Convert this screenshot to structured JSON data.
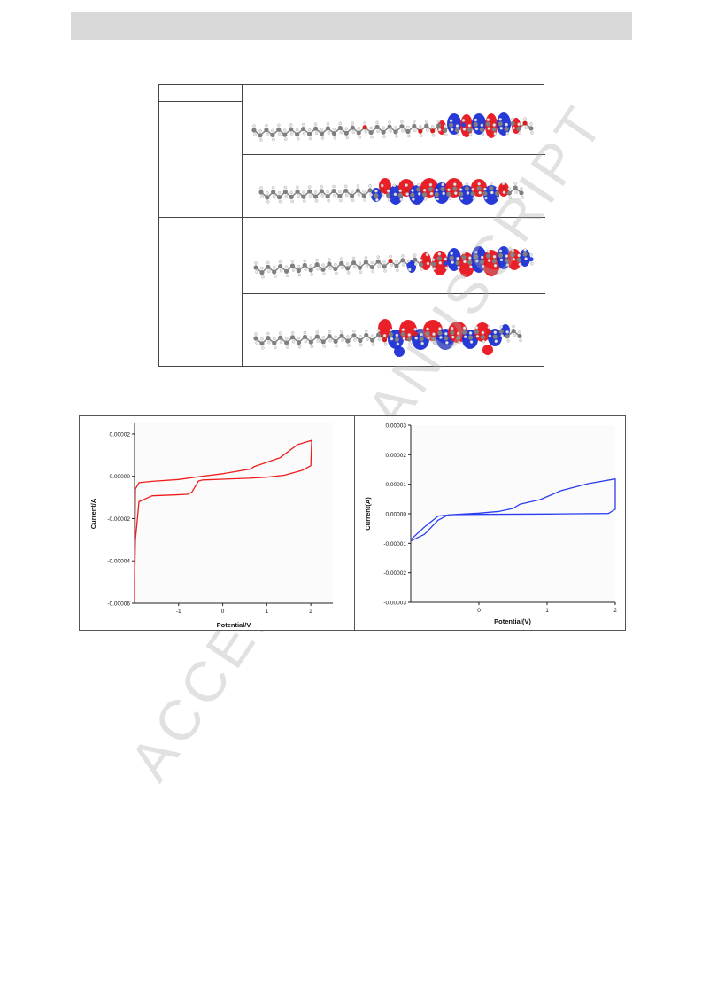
{
  "watermark": "ACCEPTED MANUSCRIPT",
  "colors": {
    "header_bar": "#d9d9d9",
    "orbital_positive": "#e8141c",
    "orbital_negative": "#1b2fd6",
    "atom_carbon": "#7f7f7f",
    "atom_hydrogen": "#e6e6e6",
    "atom_oxygen": "#d62020",
    "atom_nitrogen": "#2d3fd8",
    "cv_left_line": "#ee1c1c",
    "cv_right_line": "#2b3df0"
  },
  "orbital_table": {
    "row_labels": [
      "",
      "",
      ""
    ],
    "images": [
      "molecular-orbital-1",
      "molecular-orbital-2",
      "molecular-orbital-3",
      "molecular-orbital-4"
    ]
  },
  "chart_data": [
    {
      "type": "line",
      "title": "",
      "xlabel": "Potential/V",
      "ylabel": "Current/A",
      "xlim": [
        -2.0,
        2.5
      ],
      "ylim": [
        -6e-05,
        2.5e-05
      ],
      "x_ticks": [
        -1,
        0,
        1,
        2
      ],
      "x_tick_labels": [
        "-1",
        "0",
        "1",
        "2"
      ],
      "y_ticks": [
        2e-05,
        0.0,
        -2e-05,
        -4e-05,
        -6e-05
      ],
      "y_tick_labels": [
        "0.00002",
        "0.00000",
        "-0.00002",
        "-0.00004",
        "-0.00006"
      ],
      "grid": false,
      "series": [
        {
          "color": "#ee1c1c",
          "x": [
            -2.0,
            -2.0,
            -1.98,
            -1.9,
            -1.6,
            -1.1,
            -0.8,
            -0.7,
            -0.6,
            -0.55,
            -0.45,
            0.0,
            0.6,
            1.0,
            1.4,
            1.8,
            2.0,
            2.02,
            1.7,
            1.3,
            0.7,
            0.65,
            0.0,
            -0.5,
            -1.0,
            -1.6,
            -1.9,
            -1.98,
            -2.0
          ],
          "y": [
            -5.9e-05,
            -5e-05,
            -3e-05,
            -1.2e-05,
            -9.2e-06,
            -8.8e-06,
            -8.5e-06,
            -7.5e-06,
            -4e-06,
            -2.2e-06,
            -1.7e-06,
            -1.4e-06,
            -9e-07,
            -4e-07,
            5e-07,
            2.8e-06,
            5e-06,
            1.7e-05,
            1.5e-05,
            8.8e-06,
            4.5e-06,
            3.5e-06,
            1.2e-06,
            -1e-07,
            -1.5e-06,
            -2.4e-06,
            -3e-06,
            -6e-06,
            -5e-05
          ]
        }
      ]
    },
    {
      "type": "line",
      "title": "",
      "xlabel": "Potential(V)",
      "ylabel": "Current(A)",
      "xlim": [
        -1.0,
        2.0
      ],
      "ylim": [
        -3e-05,
        3e-05
      ],
      "x_ticks": [
        0,
        1,
        2
      ],
      "x_tick_labels": [
        "0",
        "1",
        "2"
      ],
      "y_ticks": [
        3e-05,
        2e-05,
        1e-05,
        0.0,
        -1e-05,
        -2e-05,
        -3e-05
      ],
      "y_tick_labels": [
        "0.00003",
        "0.00002",
        "0.00001",
        "0.00000",
        "-0.00001",
        "-0.00002",
        "-0.00003"
      ],
      "grid": false,
      "series": [
        {
          "color": "#2b3df0",
          "x": [
            -1.0,
            -0.8,
            -0.6,
            -0.45,
            0.0,
            0.3,
            0.5,
            0.6,
            0.9,
            1.2,
            1.6,
            2.0,
            2.0,
            1.9,
            1.0,
            0.0,
            -0.4,
            -0.6,
            -0.8,
            -1.0
          ],
          "y": [
            -9.2e-06,
            -7e-06,
            -2.2e-06,
            -4e-07,
            2e-07,
            8e-07,
            1.8e-06,
            3.2e-06,
            4.8e-06,
            7.8e-06,
            1.02e-05,
            1.18e-05,
            1.5e-06,
            1e-07,
            -1e-07,
            -2e-07,
            -3e-07,
            -8e-07,
            -4.5e-06,
            -8.8e-06
          ]
        }
      ]
    }
  ]
}
